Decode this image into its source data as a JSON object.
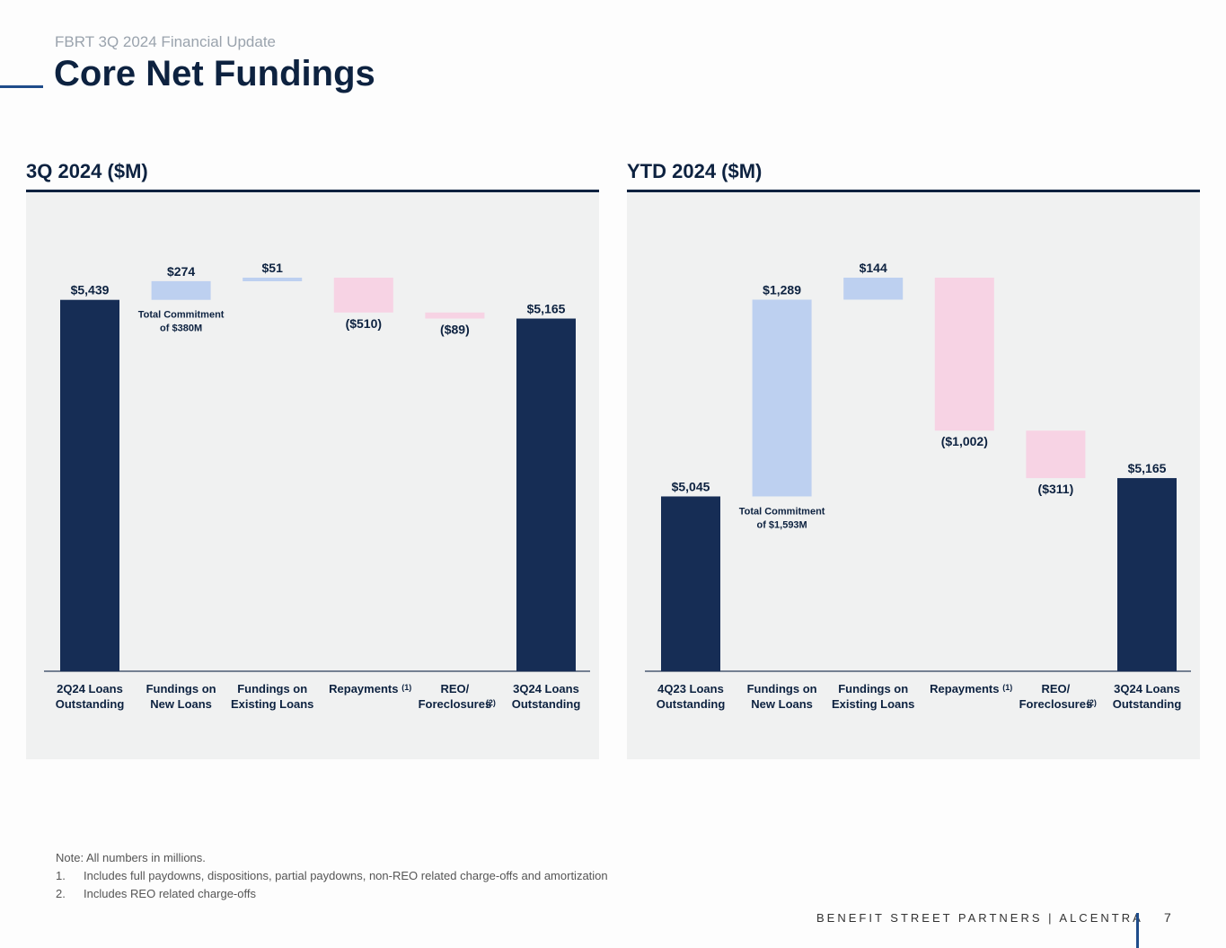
{
  "header": {
    "supertitle": "FBRT 3Q 2024 Financial Update",
    "title": "Core Net Fundings"
  },
  "colors": {
    "dark_bar": "#162d55",
    "funding_bar": "#bdd0f0",
    "repayment_bar": "#f7d3e4",
    "panel_bg": "#f0f1f1",
    "text": "#0d2240"
  },
  "chart_data": [
    {
      "type": "bar",
      "subtype": "waterfall",
      "title": "3Q 2024 ($M)",
      "categories": [
        [
          "2Q24 Loans",
          "Outstanding"
        ],
        [
          "Fundings on",
          "New Loans"
        ],
        [
          "Fundings on",
          "Existing Loans"
        ],
        [
          "Repayments",
          ""
        ],
        [
          "REO/",
          "Foreclosures"
        ],
        [
          "3Q24 Loans",
          "Outstanding"
        ]
      ],
      "category_superscripts": [
        "",
        "",
        "",
        "(1)",
        "(2)",
        ""
      ],
      "values": [
        5439,
        274,
        51,
        -510,
        -89,
        5165
      ],
      "kinds": [
        "total",
        "increase",
        "increase",
        "decrease",
        "decrease",
        "total"
      ],
      "value_labels": [
        "$5,439",
        "$274",
        "$51",
        "($510)",
        "($89)",
        "$5,165"
      ],
      "annotation": {
        "bar_index": 1,
        "lines": [
          "Total Commitment",
          "of $380M"
        ]
      },
      "ylim": [
        0,
        5764
      ]
    },
    {
      "type": "bar",
      "subtype": "waterfall",
      "title": "YTD 2024 ($M)",
      "categories": [
        [
          "4Q23 Loans",
          "Outstanding"
        ],
        [
          "Fundings on",
          "New Loans"
        ],
        [
          "Fundings on",
          "Existing Loans"
        ],
        [
          "Repayments",
          ""
        ],
        [
          "REO/",
          "Foreclosures"
        ],
        [
          "3Q24 Loans",
          "Outstanding"
        ]
      ],
      "category_superscripts": [
        "",
        "",
        "",
        "(1)",
        "(2)",
        ""
      ],
      "values": [
        5045,
        1289,
        144,
        -1002,
        -311,
        5165
      ],
      "kinds": [
        "total",
        "increase",
        "increase",
        "decrease",
        "decrease",
        "total"
      ],
      "value_labels": [
        "$5,045",
        "$1,289",
        "$144",
        "($1,002)",
        "($311)",
        "$5,165"
      ],
      "annotation": {
        "bar_index": 1,
        "lines": [
          "Total Commitment",
          "of $1,593M"
        ]
      },
      "ylim": [
        3900,
        6478
      ]
    }
  ],
  "notes": {
    "intro": "Note: All numbers in millions.",
    "items": [
      {
        "num": "1.",
        "text": "Includes full paydowns, dispositions, partial paydowns, non-REO related charge-offs and amortization"
      },
      {
        "num": "2.",
        "text": "Includes REO related charge-offs"
      }
    ]
  },
  "footer": {
    "brand": "BENEFIT STREET PARTNERS | ALCENTRA",
    "page": "7"
  }
}
